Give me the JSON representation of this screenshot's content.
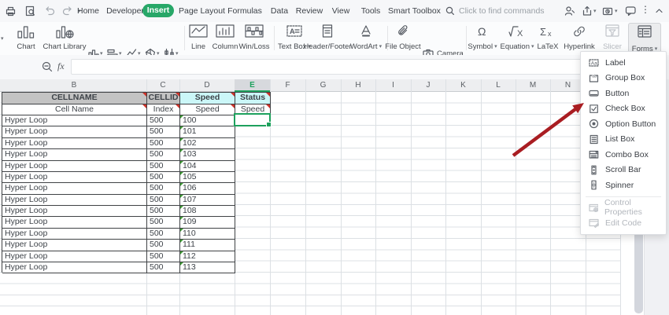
{
  "topbar": {
    "tabs": [
      "Home",
      "Developer",
      "Insert",
      "Page Layout",
      "Formulas",
      "Data",
      "Review",
      "View",
      "Tools",
      "Smart Toolbox"
    ],
    "active_tab": "Insert",
    "search_placeholder": "Click to find commands"
  },
  "ribbon": {
    "chart": "Chart",
    "chart_library": "Chart Library",
    "line": "Line",
    "column": "Column",
    "win_loss": "Win/Loss",
    "text_box": "Text Box",
    "header_footer": "Header/Footer",
    "wordart": "WordArt",
    "file_object": "File Object",
    "camera": "Camera",
    "object": "Object",
    "symbol": "Symbol",
    "equation": "Equation",
    "latex": "LaTeX",
    "hyperlink": "Hyperlink",
    "slicer": "Slicer",
    "forms": "Forms"
  },
  "formula_bar": {
    "fx_label": "fx",
    "value": ""
  },
  "grid": {
    "visible_columns": [
      "B",
      "C",
      "D",
      "E",
      "F",
      "G",
      "H",
      "I",
      "J",
      "K",
      "L",
      "M",
      "N"
    ],
    "selected_column": "E",
    "table": {
      "header_row1": [
        "CELLNAME",
        "CELLID",
        "Speed",
        "Status"
      ],
      "header_row2": [
        "Cell Name",
        "Index",
        "Speed",
        "Speed"
      ],
      "rows": [
        [
          "Hyper Loop",
          "500",
          "100"
        ],
        [
          "Hyper Loop",
          "500",
          "101"
        ],
        [
          "Hyper Loop",
          "500",
          "102"
        ],
        [
          "Hyper Loop",
          "500",
          "103"
        ],
        [
          "Hyper Loop",
          "500",
          "104"
        ],
        [
          "Hyper Loop",
          "500",
          "105"
        ],
        [
          "Hyper Loop",
          "500",
          "106"
        ],
        [
          "Hyper Loop",
          "500",
          "107"
        ],
        [
          "Hyper Loop",
          "500",
          "108"
        ],
        [
          "Hyper Loop",
          "500",
          "109"
        ],
        [
          "Hyper Loop",
          "500",
          "110"
        ],
        [
          "Hyper Loop",
          "500",
          "111"
        ],
        [
          "Hyper Loop",
          "500",
          "112"
        ],
        [
          "Hyper Loop",
          "500",
          "113"
        ]
      ]
    }
  },
  "forms_menu": {
    "items": [
      {
        "label": "Label",
        "enabled": true
      },
      {
        "label": "Group Box",
        "enabled": true
      },
      {
        "label": "Button",
        "enabled": true
      },
      {
        "label": "Check Box",
        "enabled": true
      },
      {
        "label": "Option Button",
        "enabled": true
      },
      {
        "label": "List Box",
        "enabled": true
      },
      {
        "label": "Combo Box",
        "enabled": true
      },
      {
        "label": "Scroll Bar",
        "enabled": true
      },
      {
        "label": "Spinner",
        "enabled": true
      },
      {
        "label": "Control Properties",
        "enabled": false
      },
      {
        "label": "Edit Code",
        "enabled": false
      }
    ]
  },
  "colors": {
    "accent_green": "#27a768",
    "selection_green": "#1ea15d",
    "table_header_gray": "#c3c3c3",
    "table_header_cyan": "#cbf7f8",
    "arrow_red": "#a91d22"
  }
}
